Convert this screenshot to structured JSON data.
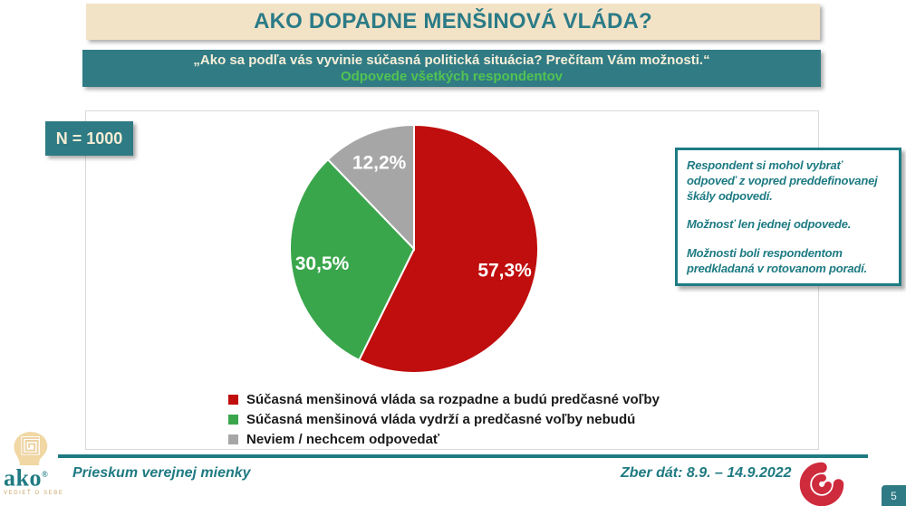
{
  "slide": {
    "title": "AKO DOPADNE MENŠINOVÁ VLÁDA?",
    "question": "„Ako sa podľa vás vyvinie súčasná politická situácia? Prečítam Vám možnosti.“",
    "subtitle": "Odpovede všetkých respondentov",
    "sample_badge": "N = 1000",
    "page_number": "5"
  },
  "note_box": {
    "paragraphs": [
      "Respondent si mohol vybrať odpoveď z vopred preddefinovanej škály odpovedí.",
      "Možnosť len jednej odpovede.",
      "Možnosti boli respondentom predkladaná v rotovanom poradí."
    ]
  },
  "footer": {
    "left": "Prieskum verejnej mienky",
    "right": "Zber dát: 8.9. – 14.9.2022",
    "logo_text": "ako",
    "logo_reg": "®",
    "logo_tagline": "VEDIEŤ O SEBE"
  },
  "chart_data": {
    "type": "pie",
    "title": "AKO DOPADNE MENŠINOVÁ VLÁDA?",
    "labels": [
      "Súčasná menšinová vláda sa rozpadne a budú predčasné voľby",
      "Súčasná menšinová vláda vydrží a predčasné voľby nebudú",
      "Neviem / nechcem odpovedať"
    ],
    "values": [
      57.3,
      30.5,
      12.2
    ],
    "value_labels": [
      "57,3%",
      "30,5%",
      "12,2%"
    ],
    "colors": [
      "#c00d0d",
      "#3aa64c",
      "#a6a6a6"
    ],
    "start_angle_deg": 0,
    "direction": "clockwise",
    "legend_position": "bottom",
    "label_color": "#ffffff"
  },
  "colors": {
    "teal_bar": "#307b84",
    "teal_dark": "#1f7a82",
    "cream": "#f3e3c6",
    "accent_green": "#52c352",
    "logo_red": "#ce2b3d"
  }
}
